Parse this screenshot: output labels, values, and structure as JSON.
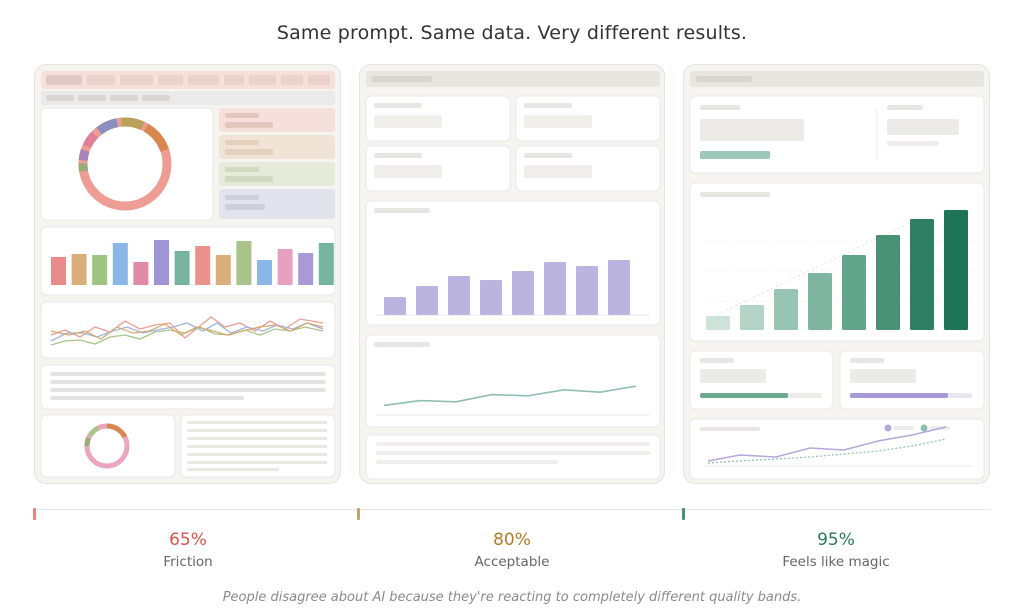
{
  "title": "Same prompt. Same data. Very different results.",
  "bands": [
    {
      "percent": "65%",
      "label": "Friction",
      "color": "#d9534f",
      "quality": 0.65
    },
    {
      "percent": "80%",
      "label": "Acceptable",
      "color": "#b07d2a",
      "quality": 0.8
    },
    {
      "percent": "95%",
      "label": "Feels like magic",
      "color": "#2b7a5a",
      "quality": 0.95
    }
  ],
  "footer": "People disagree about AI because they're reacting to completely different quality bands.",
  "colors": {
    "friction_accent": "#e8837d",
    "acceptable_accent": "#c9a06a",
    "magic_accent": "#4a9077",
    "purple": "#bbb3e0",
    "green_line": "#8fbfae"
  },
  "chart_data": [
    {
      "type": "bar",
      "panel": "friction",
      "values": [
        28,
        31,
        30,
        42,
        23,
        45,
        34,
        39,
        30,
        44,
        25,
        36,
        32,
        42
      ]
    },
    {
      "type": "bar",
      "panel": "acceptable",
      "values": [
        18,
        29,
        39,
        35,
        44,
        53,
        49,
        55
      ]
    },
    {
      "type": "line",
      "panel": "acceptable",
      "values": [
        8,
        12,
        11,
        17,
        16,
        21,
        19,
        24
      ]
    },
    {
      "type": "bar",
      "panel": "magic",
      "values": [
        14,
        25,
        41,
        57,
        75,
        95,
        111,
        120
      ]
    }
  ]
}
